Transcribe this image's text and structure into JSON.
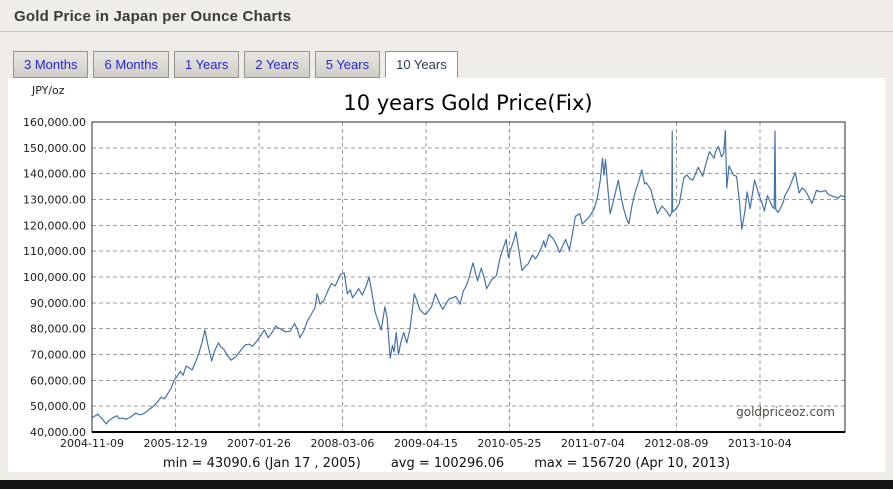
{
  "page": {
    "title": "Gold Price in Japan per Ounce Charts"
  },
  "tabs": [
    {
      "label": "3 Months",
      "active": false
    },
    {
      "label": "6 Months",
      "active": false
    },
    {
      "label": "1 Years",
      "active": false
    },
    {
      "label": "2 Years",
      "active": false
    },
    {
      "label": "5 Years",
      "active": false
    },
    {
      "label": "10 Years",
      "active": true
    }
  ],
  "stats": {
    "min": "min = 43090.6 (Jan 17 , 2005)",
    "avg": "avg = 100296.06",
    "max": "max = 156720 (Apr 10, 2013)"
  },
  "chart_data": {
    "type": "line",
    "title": "10 years Gold Price(Fix)",
    "ylabel": "JPY/oz",
    "watermark": "goldpriceoz.com",
    "line_color": "#4572a7",
    "grid": true,
    "legend": "none",
    "ylim": [
      40000,
      160000
    ],
    "min": {
      "value": 43090.6,
      "date": "Jan 17 , 2005"
    },
    "avg": 100296.06,
    "max": {
      "value": 156720,
      "date": "Apr 10, 2013"
    },
    "y_ticks": [
      {
        "v": 40000,
        "label": "40,000.00"
      },
      {
        "v": 50000,
        "label": "50,000.00"
      },
      {
        "v": 60000,
        "label": "60,000.00"
      },
      {
        "v": 70000,
        "label": "70,000.00"
      },
      {
        "v": 80000,
        "label": "80,000.00"
      },
      {
        "v": 90000,
        "label": "90,000.00"
      },
      {
        "v": 100000,
        "label": "100,000.00"
      },
      {
        "v": 110000,
        "label": "110,000.00"
      },
      {
        "v": 120000,
        "label": "120,000.00"
      },
      {
        "v": 130000,
        "label": "130,000.00"
      },
      {
        "v": 140000,
        "label": "140,000.00"
      },
      {
        "v": 150000,
        "label": "150,000.00"
      },
      {
        "v": 160000,
        "label": "160,000.00"
      }
    ],
    "x_ticks": [
      {
        "f": 0.0,
        "label": "2004-11-09"
      },
      {
        "f": 0.1109,
        "label": "2005-12-19"
      },
      {
        "f": 0.2217,
        "label": "2007-01-26"
      },
      {
        "f": 0.3326,
        "label": "2008-03-06"
      },
      {
        "f": 0.4435,
        "label": "2009-04-15"
      },
      {
        "f": 0.5543,
        "label": "2010-05-25"
      },
      {
        "f": 0.6652,
        "label": "2011-07-04"
      },
      {
        "f": 0.7761,
        "label": "2012-08-09"
      },
      {
        "f": 0.8869,
        "label": "2013-10-04"
      }
    ],
    "series": [
      {
        "name": "Gold Price (JPY/oz)",
        "points": [
          [
            0.0,
            45500
          ],
          [
            0.004,
            46200
          ],
          [
            0.008,
            46900
          ],
          [
            0.011,
            45800
          ],
          [
            0.015,
            44600
          ],
          [
            0.019,
            43091
          ],
          [
            0.022,
            44300
          ],
          [
            0.025,
            44900
          ],
          [
            0.029,
            45700
          ],
          [
            0.033,
            46300
          ],
          [
            0.036,
            45200
          ],
          [
            0.04,
            45400
          ],
          [
            0.045,
            44900
          ],
          [
            0.05,
            45600
          ],
          [
            0.054,
            46400
          ],
          [
            0.058,
            47300
          ],
          [
            0.063,
            46700
          ],
          [
            0.068,
            47000
          ],
          [
            0.072,
            47800
          ],
          [
            0.075,
            48500
          ],
          [
            0.08,
            49600
          ],
          [
            0.085,
            51000
          ],
          [
            0.089,
            52400
          ],
          [
            0.092,
            53500
          ],
          [
            0.096,
            52800
          ],
          [
            0.1,
            54500
          ],
          [
            0.105,
            57000
          ],
          [
            0.109,
            60000
          ],
          [
            0.113,
            61500
          ],
          [
            0.117,
            63500
          ],
          [
            0.121,
            62000
          ],
          [
            0.125,
            65500
          ],
          [
            0.129,
            64800
          ],
          [
            0.133,
            64000
          ],
          [
            0.138,
            67500
          ],
          [
            0.142,
            70500
          ],
          [
            0.146,
            74500
          ],
          [
            0.15,
            79500
          ],
          [
            0.154,
            73500
          ],
          [
            0.159,
            67500
          ],
          [
            0.163,
            71500
          ],
          [
            0.168,
            74500
          ],
          [
            0.171,
            73000
          ],
          [
            0.175,
            72000
          ],
          [
            0.18,
            69500
          ],
          [
            0.185,
            67800
          ],
          [
            0.189,
            68700
          ],
          [
            0.192,
            69500
          ],
          [
            0.196,
            71000
          ],
          [
            0.2,
            72500
          ],
          [
            0.204,
            73800
          ],
          [
            0.209,
            74000
          ],
          [
            0.213,
            73200
          ],
          [
            0.217,
            74500
          ],
          [
            0.222,
            76500
          ],
          [
            0.229,
            79500
          ],
          [
            0.234,
            76500
          ],
          [
            0.239,
            78500
          ],
          [
            0.244,
            81000
          ],
          [
            0.248,
            80200
          ],
          [
            0.251,
            79800
          ],
          [
            0.257,
            78800
          ],
          [
            0.263,
            79000
          ],
          [
            0.269,
            82000
          ],
          [
            0.273,
            79500
          ],
          [
            0.276,
            76500
          ],
          [
            0.281,
            79000
          ],
          [
            0.286,
            83000
          ],
          [
            0.291,
            85500
          ],
          [
            0.296,
            88000
          ],
          [
            0.299,
            93500
          ],
          [
            0.303,
            89500
          ],
          [
            0.308,
            91000
          ],
          [
            0.313,
            94500
          ],
          [
            0.318,
            97500
          ],
          [
            0.323,
            96500
          ],
          [
            0.33,
            101000
          ],
          [
            0.335,
            101500
          ],
          [
            0.339,
            93500
          ],
          [
            0.343,
            95000
          ],
          [
            0.346,
            92000
          ],
          [
            0.35,
            93500
          ],
          [
            0.354,
            95500
          ],
          [
            0.359,
            93000
          ],
          [
            0.364,
            96500
          ],
          [
            0.368,
            100000
          ],
          [
            0.372,
            93500
          ],
          [
            0.376,
            86500
          ],
          [
            0.38,
            83000
          ],
          [
            0.384,
            79500
          ],
          [
            0.389,
            88500
          ],
          [
            0.392,
            84000
          ],
          [
            0.396,
            68500
          ],
          [
            0.399,
            73500
          ],
          [
            0.401,
            71000
          ],
          [
            0.404,
            78500
          ],
          [
            0.407,
            70000
          ],
          [
            0.41,
            74500
          ],
          [
            0.414,
            78500
          ],
          [
            0.418,
            74500
          ],
          [
            0.422,
            79500
          ],
          [
            0.428,
            93500
          ],
          [
            0.432,
            90500
          ],
          [
            0.435,
            87500
          ],
          [
            0.44,
            86000
          ],
          [
            0.443,
            85500
          ],
          [
            0.447,
            87000
          ],
          [
            0.451,
            88500
          ],
          [
            0.456,
            93500
          ],
          [
            0.462,
            89500
          ],
          [
            0.466,
            87500
          ],
          [
            0.47,
            89500
          ],
          [
            0.474,
            91500
          ],
          [
            0.479,
            92000
          ],
          [
            0.483,
            92500
          ],
          [
            0.489,
            89500
          ],
          [
            0.493,
            94500
          ],
          [
            0.497,
            96500
          ],
          [
            0.5,
            99000
          ],
          [
            0.506,
            105500
          ],
          [
            0.512,
            98500
          ],
          [
            0.517,
            103500
          ],
          [
            0.521,
            99500
          ],
          [
            0.524,
            95500
          ],
          [
            0.528,
            97500
          ],
          [
            0.531,
            99000
          ],
          [
            0.537,
            100500
          ],
          [
            0.542,
            107500
          ],
          [
            0.546,
            111000
          ],
          [
            0.55,
            114500
          ],
          [
            0.553,
            107500
          ],
          [
            0.557,
            111500
          ],
          [
            0.56,
            114000
          ],
          [
            0.563,
            117500
          ],
          [
            0.567,
            110000
          ],
          [
            0.571,
            102500
          ],
          [
            0.575,
            104000
          ],
          [
            0.579,
            105000
          ],
          [
            0.585,
            108500
          ],
          [
            0.589,
            107000
          ],
          [
            0.593,
            109000
          ],
          [
            0.597,
            111500
          ],
          [
            0.6,
            114000
          ],
          [
            0.602,
            111500
          ],
          [
            0.607,
            116500
          ],
          [
            0.612,
            115000
          ],
          [
            0.616,
            113000
          ],
          [
            0.621,
            109500
          ],
          [
            0.625,
            112000
          ],
          [
            0.629,
            114500
          ],
          [
            0.634,
            110500
          ],
          [
            0.638,
            116500
          ],
          [
            0.642,
            123500
          ],
          [
            0.648,
            124500
          ],
          [
            0.651,
            120500
          ],
          [
            0.656,
            122000
          ],
          [
            0.661,
            123500
          ],
          [
            0.667,
            126500
          ],
          [
            0.671,
            130500
          ],
          [
            0.675,
            137500
          ],
          [
            0.678,
            146000
          ],
          [
            0.68,
            139500
          ],
          [
            0.682,
            145500
          ],
          [
            0.685,
            134500
          ],
          [
            0.688,
            124500
          ],
          [
            0.69,
            126500
          ],
          [
            0.695,
            132500
          ],
          [
            0.699,
            137500
          ],
          [
            0.703,
            130500
          ],
          [
            0.706,
            126500
          ],
          [
            0.71,
            122500
          ],
          [
            0.713,
            120500
          ],
          [
            0.717,
            127500
          ],
          [
            0.721,
            132500
          ],
          [
            0.726,
            137000
          ],
          [
            0.73,
            141500
          ],
          [
            0.734,
            136000
          ],
          [
            0.736,
            136500
          ],
          [
            0.742,
            134000
          ],
          [
            0.746,
            129500
          ],
          [
            0.751,
            124500
          ],
          [
            0.757,
            127500
          ],
          [
            0.763,
            125500
          ],
          [
            0.767,
            123500
          ],
          [
            0.77,
            124800
          ],
          [
            0.7705,
            156500
          ],
          [
            0.771,
            125200
          ],
          [
            0.776,
            126500
          ],
          [
            0.78,
            128500
          ],
          [
            0.786,
            138500
          ],
          [
            0.79,
            139500
          ],
          [
            0.794,
            138000
          ],
          [
            0.798,
            137500
          ],
          [
            0.805,
            142500
          ],
          [
            0.811,
            139000
          ],
          [
            0.815,
            143500
          ],
          [
            0.82,
            148500
          ],
          [
            0.826,
            146000
          ],
          [
            0.828,
            148500
          ],
          [
            0.832,
            150500
          ],
          [
            0.836,
            146500
          ],
          [
            0.839,
            148000
          ],
          [
            0.841,
            156720
          ],
          [
            0.843,
            134500
          ],
          [
            0.846,
            143000
          ],
          [
            0.852,
            139500
          ],
          [
            0.856,
            139000
          ],
          [
            0.86,
            128500
          ],
          [
            0.863,
            118500
          ],
          [
            0.867,
            125500
          ],
          [
            0.87,
            133000
          ],
          [
            0.874,
            126500
          ],
          [
            0.88,
            137500
          ],
          [
            0.886,
            131500
          ],
          [
            0.89,
            128500
          ],
          [
            0.893,
            125500
          ],
          [
            0.897,
            131500
          ],
          [
            0.9,
            129500
          ],
          [
            0.904,
            127000
          ],
          [
            0.906,
            126500
          ],
          [
            0.907,
            156500
          ],
          [
            0.908,
            126200
          ],
          [
            0.911,
            125000
          ],
          [
            0.914,
            126500
          ],
          [
            0.918,
            129000
          ],
          [
            0.92,
            131500
          ],
          [
            0.926,
            134500
          ],
          [
            0.93,
            137500
          ],
          [
            0.934,
            140500
          ],
          [
            0.939,
            132500
          ],
          [
            0.943,
            134500
          ],
          [
            0.947,
            133500
          ],
          [
            0.95,
            132000
          ],
          [
            0.956,
            128500
          ],
          [
            0.962,
            133500
          ],
          [
            0.968,
            133000
          ],
          [
            0.974,
            133500
          ],
          [
            0.978,
            132000
          ],
          [
            0.981,
            131500
          ],
          [
            0.987,
            131000
          ],
          [
            0.991,
            130500
          ],
          [
            0.994,
            131500
          ],
          [
            1.0,
            131000
          ]
        ]
      }
    ]
  }
}
